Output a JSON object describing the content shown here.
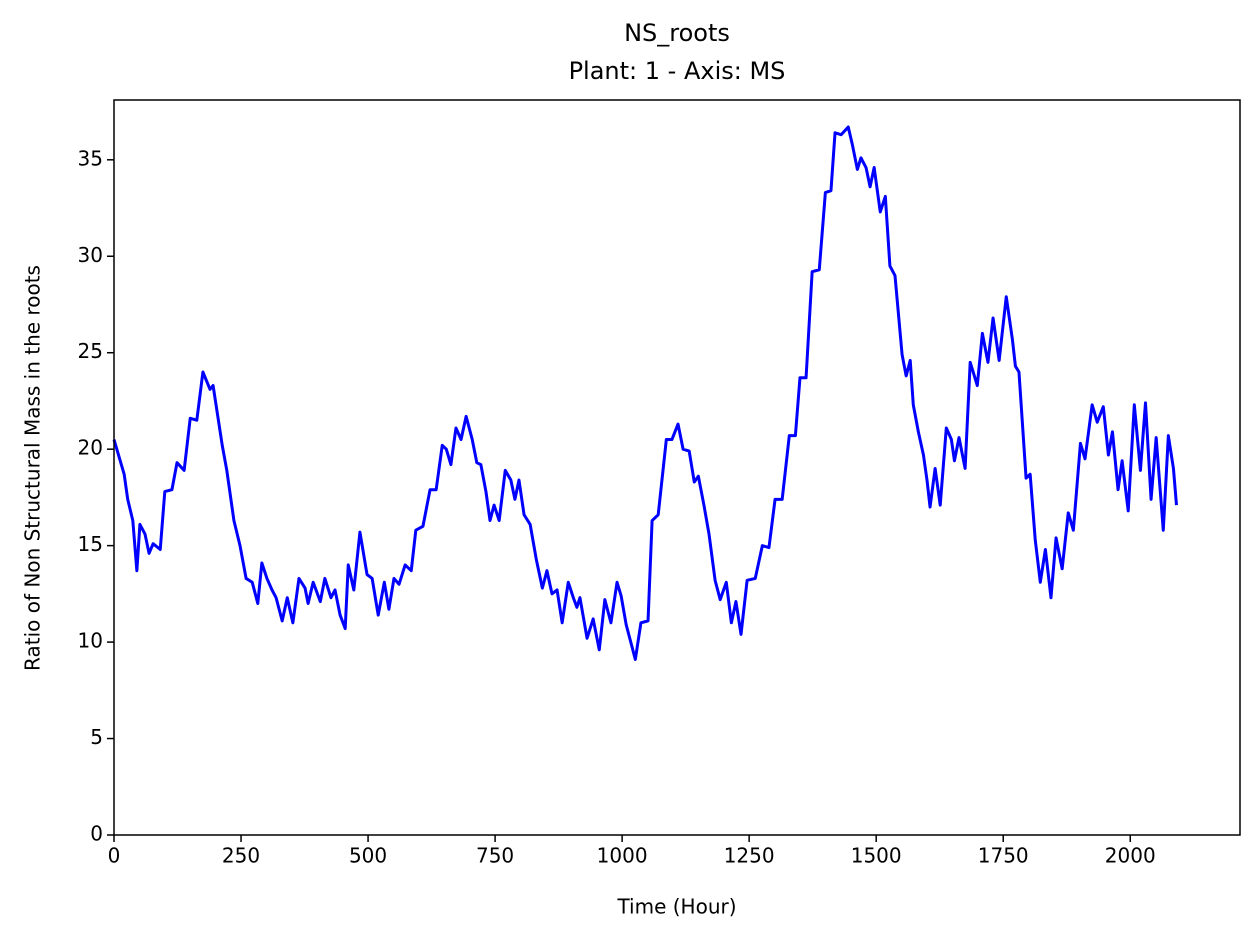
{
  "chart_data": {
    "type": "line",
    "title": "NS_roots",
    "subtitle": "Plant: 1 - Axis: MS",
    "x_label": "Time (Hour)",
    "y_label": "Ratio of Non Structural Mass in the roots",
    "xlim": [
      0,
      2216
    ],
    "ylim": [
      0,
      38.1
    ],
    "xticks": [
      0,
      250,
      500,
      750,
      1000,
      1250,
      1500,
      1750,
      2000
    ],
    "yticks": [
      0,
      5,
      10,
      15,
      20,
      25,
      30,
      35
    ],
    "grid": false,
    "series": [
      {
        "name": "NS_roots",
        "color": "#0000ff",
        "x": [
          0,
          20,
          27,
          37,
          45,
          51,
          61,
          69,
          77,
          91,
          100,
          114,
          124,
          138,
          150,
          163,
          175,
          189,
          195,
          213,
          222,
          236,
          248,
          260,
          272,
          283,
          291,
          301,
          311,
          319,
          331,
          341,
          352,
          364,
          376,
          382,
          392,
          406,
          415,
          427,
          435,
          445,
          455,
          461,
          472,
          484,
          498,
          508,
          520,
          532,
          541,
          551,
          561,
          573,
          585,
          594,
          608,
          622,
          634,
          646,
          654,
          663,
          673,
          683,
          693,
          705,
          714,
          722,
          732,
          740,
          748,
          758,
          770,
          781,
          789,
          797,
          807,
          819,
          831,
          843,
          852,
          862,
          872,
          882,
          894,
          904,
          911,
          917,
          931,
          943,
          955,
          966,
          978,
          990,
          998,
          1008,
          1016,
          1026,
          1037,
          1051,
          1059,
          1071,
          1087,
          1098,
          1110,
          1120,
          1132,
          1142,
          1150,
          1161,
          1171,
          1183,
          1193,
          1205,
          1215,
          1224,
          1234,
          1246,
          1262,
          1276,
          1289,
          1301,
          1315,
          1329,
          1341,
          1350,
          1362,
          1374,
          1388,
          1400,
          1411,
          1419,
          1431,
          1445,
          1453,
          1463,
          1470,
          1480,
          1488,
          1496,
          1508,
          1518,
          1527,
          1537,
          1551,
          1559,
          1567,
          1573,
          1583,
          1593,
          1600,
          1606,
          1616,
          1626,
          1638,
          1648,
          1654,
          1663,
          1675,
          1685,
          1699,
          1709,
          1720,
          1730,
          1742,
          1756,
          1768,
          1774,
          1781,
          1795,
          1803,
          1813,
          1823,
          1833,
          1844,
          1854,
          1866,
          1878,
          1888,
          1902,
          1911,
          1925,
          1935,
          1947,
          1957,
          1965,
          1976,
          1984,
          1996,
          2008,
          2020,
          2030,
          2041,
          2051,
          2065,
          2075,
          2085,
          2091
        ],
        "values": [
          20.5,
          18.7,
          17.4,
          16.3,
          13.7,
          16.1,
          15.6,
          14.6,
          15.1,
          14.8,
          17.8,
          17.9,
          19.3,
          18.9,
          21.6,
          21.5,
          24.0,
          23.1,
          23.3,
          20.2,
          18.9,
          16.3,
          15.0,
          13.3,
          13.1,
          12.0,
          14.1,
          13.3,
          12.7,
          12.3,
          11.1,
          12.3,
          11.0,
          13.3,
          12.8,
          12.0,
          13.1,
          12.1,
          13.3,
          12.3,
          12.7,
          11.4,
          10.7,
          14.0,
          12.7,
          15.7,
          13.5,
          13.3,
          11.4,
          13.1,
          11.7,
          13.3,
          13.0,
          14.0,
          13.7,
          15.8,
          16.0,
          17.9,
          17.9,
          20.2,
          20.0,
          19.2,
          21.1,
          20.5,
          21.7,
          20.5,
          19.3,
          19.2,
          17.8,
          16.3,
          17.1,
          16.3,
          18.9,
          18.4,
          17.4,
          18.4,
          16.6,
          16.1,
          14.3,
          12.8,
          13.7,
          12.5,
          12.7,
          11.0,
          13.1,
          12.3,
          11.8,
          12.3,
          10.2,
          11.2,
          9.6,
          12.2,
          11.0,
          13.1,
          12.4,
          10.9,
          10.1,
          9.1,
          11.0,
          11.1,
          16.3,
          16.6,
          20.5,
          20.5,
          21.3,
          20.0,
          19.9,
          18.3,
          18.6,
          17.1,
          15.6,
          13.2,
          12.2,
          13.1,
          11.0,
          12.1,
          10.4,
          13.2,
          13.3,
          15.0,
          14.9,
          17.4,
          17.4,
          20.7,
          20.7,
          23.7,
          23.7,
          29.2,
          29.3,
          33.3,
          33.4,
          36.4,
          36.3,
          36.7,
          35.8,
          34.5,
          35.1,
          34.6,
          33.6,
          34.6,
          32.3,
          33.1,
          29.5,
          29.0,
          24.9,
          23.8,
          24.6,
          22.3,
          20.9,
          19.7,
          18.4,
          17.0,
          19.0,
          17.1,
          21.1,
          20.5,
          19.4,
          20.6,
          19.0,
          24.5,
          23.3,
          26.0,
          24.5,
          26.8,
          24.6,
          27.9,
          25.7,
          24.3,
          24.0,
          18.5,
          18.7,
          15.3,
          13.1,
          14.8,
          12.3,
          15.4,
          13.8,
          16.7,
          15.8,
          20.3,
          19.5,
          22.3,
          21.4,
          22.2,
          19.7,
          20.9,
          17.9,
          19.4,
          16.8,
          22.3,
          18.9,
          22.4,
          17.4,
          20.6,
          15.8,
          20.7,
          19.0,
          17.1
        ]
      }
    ]
  }
}
